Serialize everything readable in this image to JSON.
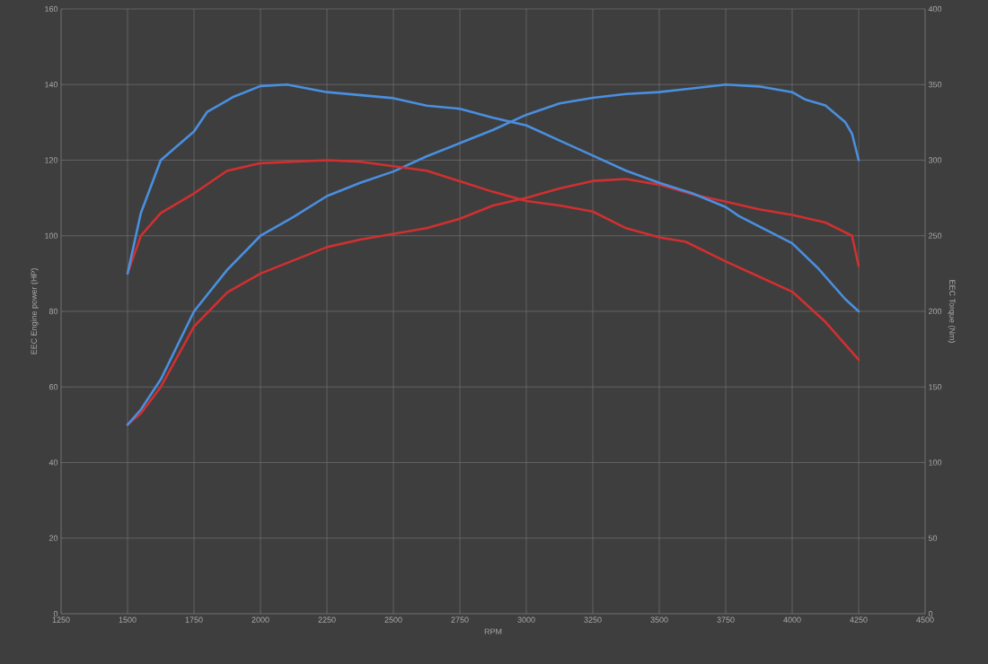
{
  "chart_data": {
    "type": "line",
    "xlabel": "RPM",
    "ylabel": "EEC Engine power (HP)",
    "y2label": "EEC Torque (Nm)",
    "xlim": [
      1250,
      4500
    ],
    "xticks": [
      1250,
      1500,
      1750,
      2000,
      2250,
      2500,
      2750,
      3000,
      3250,
      3500,
      3750,
      4000,
      4250,
      4500
    ],
    "ylim": [
      0,
      160
    ],
    "yticks": [
      0,
      20,
      40,
      60,
      80,
      100,
      120,
      140,
      160
    ],
    "y2lim": [
      0,
      400
    ],
    "y2ticks": [
      0,
      50,
      100,
      150,
      200,
      250,
      300,
      350,
      400
    ],
    "grid": true,
    "series": [
      {
        "color": "#d03030",
        "x": [
          1500,
          1550,
          1625,
          1750,
          1875,
          2000,
          2125,
          2250,
          2375,
          2500,
          2625,
          2750,
          2875,
          3000,
          3125,
          3250,
          3375,
          3500,
          3625,
          3750,
          3875,
          4000,
          4125,
          4225,
          4250
        ],
        "values": [
          50,
          53,
          60,
          76,
          85,
          90,
          93.5,
          97,
          99,
          100.5,
          102,
          104.5,
          108,
          110,
          112.5,
          114.5,
          115,
          113.5,
          111,
          109,
          107,
          105.5,
          103.5,
          100,
          92
        ]
      },
      {
        "color": "#4a8fe0",
        "x": [
          1500,
          1550,
          1625,
          1750,
          1875,
          2000,
          2125,
          2250,
          2375,
          2500,
          2625,
          2750,
          2875,
          3000,
          3125,
          3250,
          3375,
          3500,
          3625,
          3750,
          3875,
          4000,
          4050,
          4125,
          4200,
          4225,
          4250
        ],
        "values": [
          50,
          54,
          62,
          80,
          91,
          100,
          105,
          110.5,
          114,
          117,
          121,
          124.5,
          128,
          132,
          135,
          136.5,
          137.5,
          138,
          139,
          140,
          139.5,
          138,
          136,
          134.5,
          130,
          127,
          120
        ]
      },
      {
        "color": "#d03030",
        "axis": "y2",
        "x": [
          1500,
          1550,
          1625,
          1750,
          1875,
          2000,
          2125,
          2250,
          2375,
          2500,
          2625,
          2750,
          2875,
          3000,
          3125,
          3250,
          3375,
          3500,
          3600,
          3750,
          3875,
          4000,
          4050,
          4125,
          4250
        ],
        "values": [
          225,
          250,
          265,
          278,
          293,
          298,
          299,
          300,
          299,
          296,
          293,
          286,
          279,
          273,
          270,
          266,
          255,
          249,
          246,
          233,
          223,
          213,
          205,
          193,
          168
        ]
      },
      {
        "color": "#4a8fe0",
        "axis": "y2",
        "x": [
          1500,
          1550,
          1625,
          1750,
          1800,
          1900,
          2000,
          2100,
          2250,
          2500,
          2625,
          2750,
          2875,
          3000,
          3125,
          3250,
          3375,
          3500,
          3625,
          3750,
          3800,
          4000,
          4100,
          4150,
          4200,
          4250
        ],
        "values": [
          225,
          265,
          300,
          319,
          332,
          342,
          349,
          350,
          345,
          341,
          336,
          334,
          328,
          323,
          313,
          303,
          293,
          285,
          278,
          269,
          263,
          245,
          228,
          218,
          208,
          200
        ]
      }
    ]
  }
}
